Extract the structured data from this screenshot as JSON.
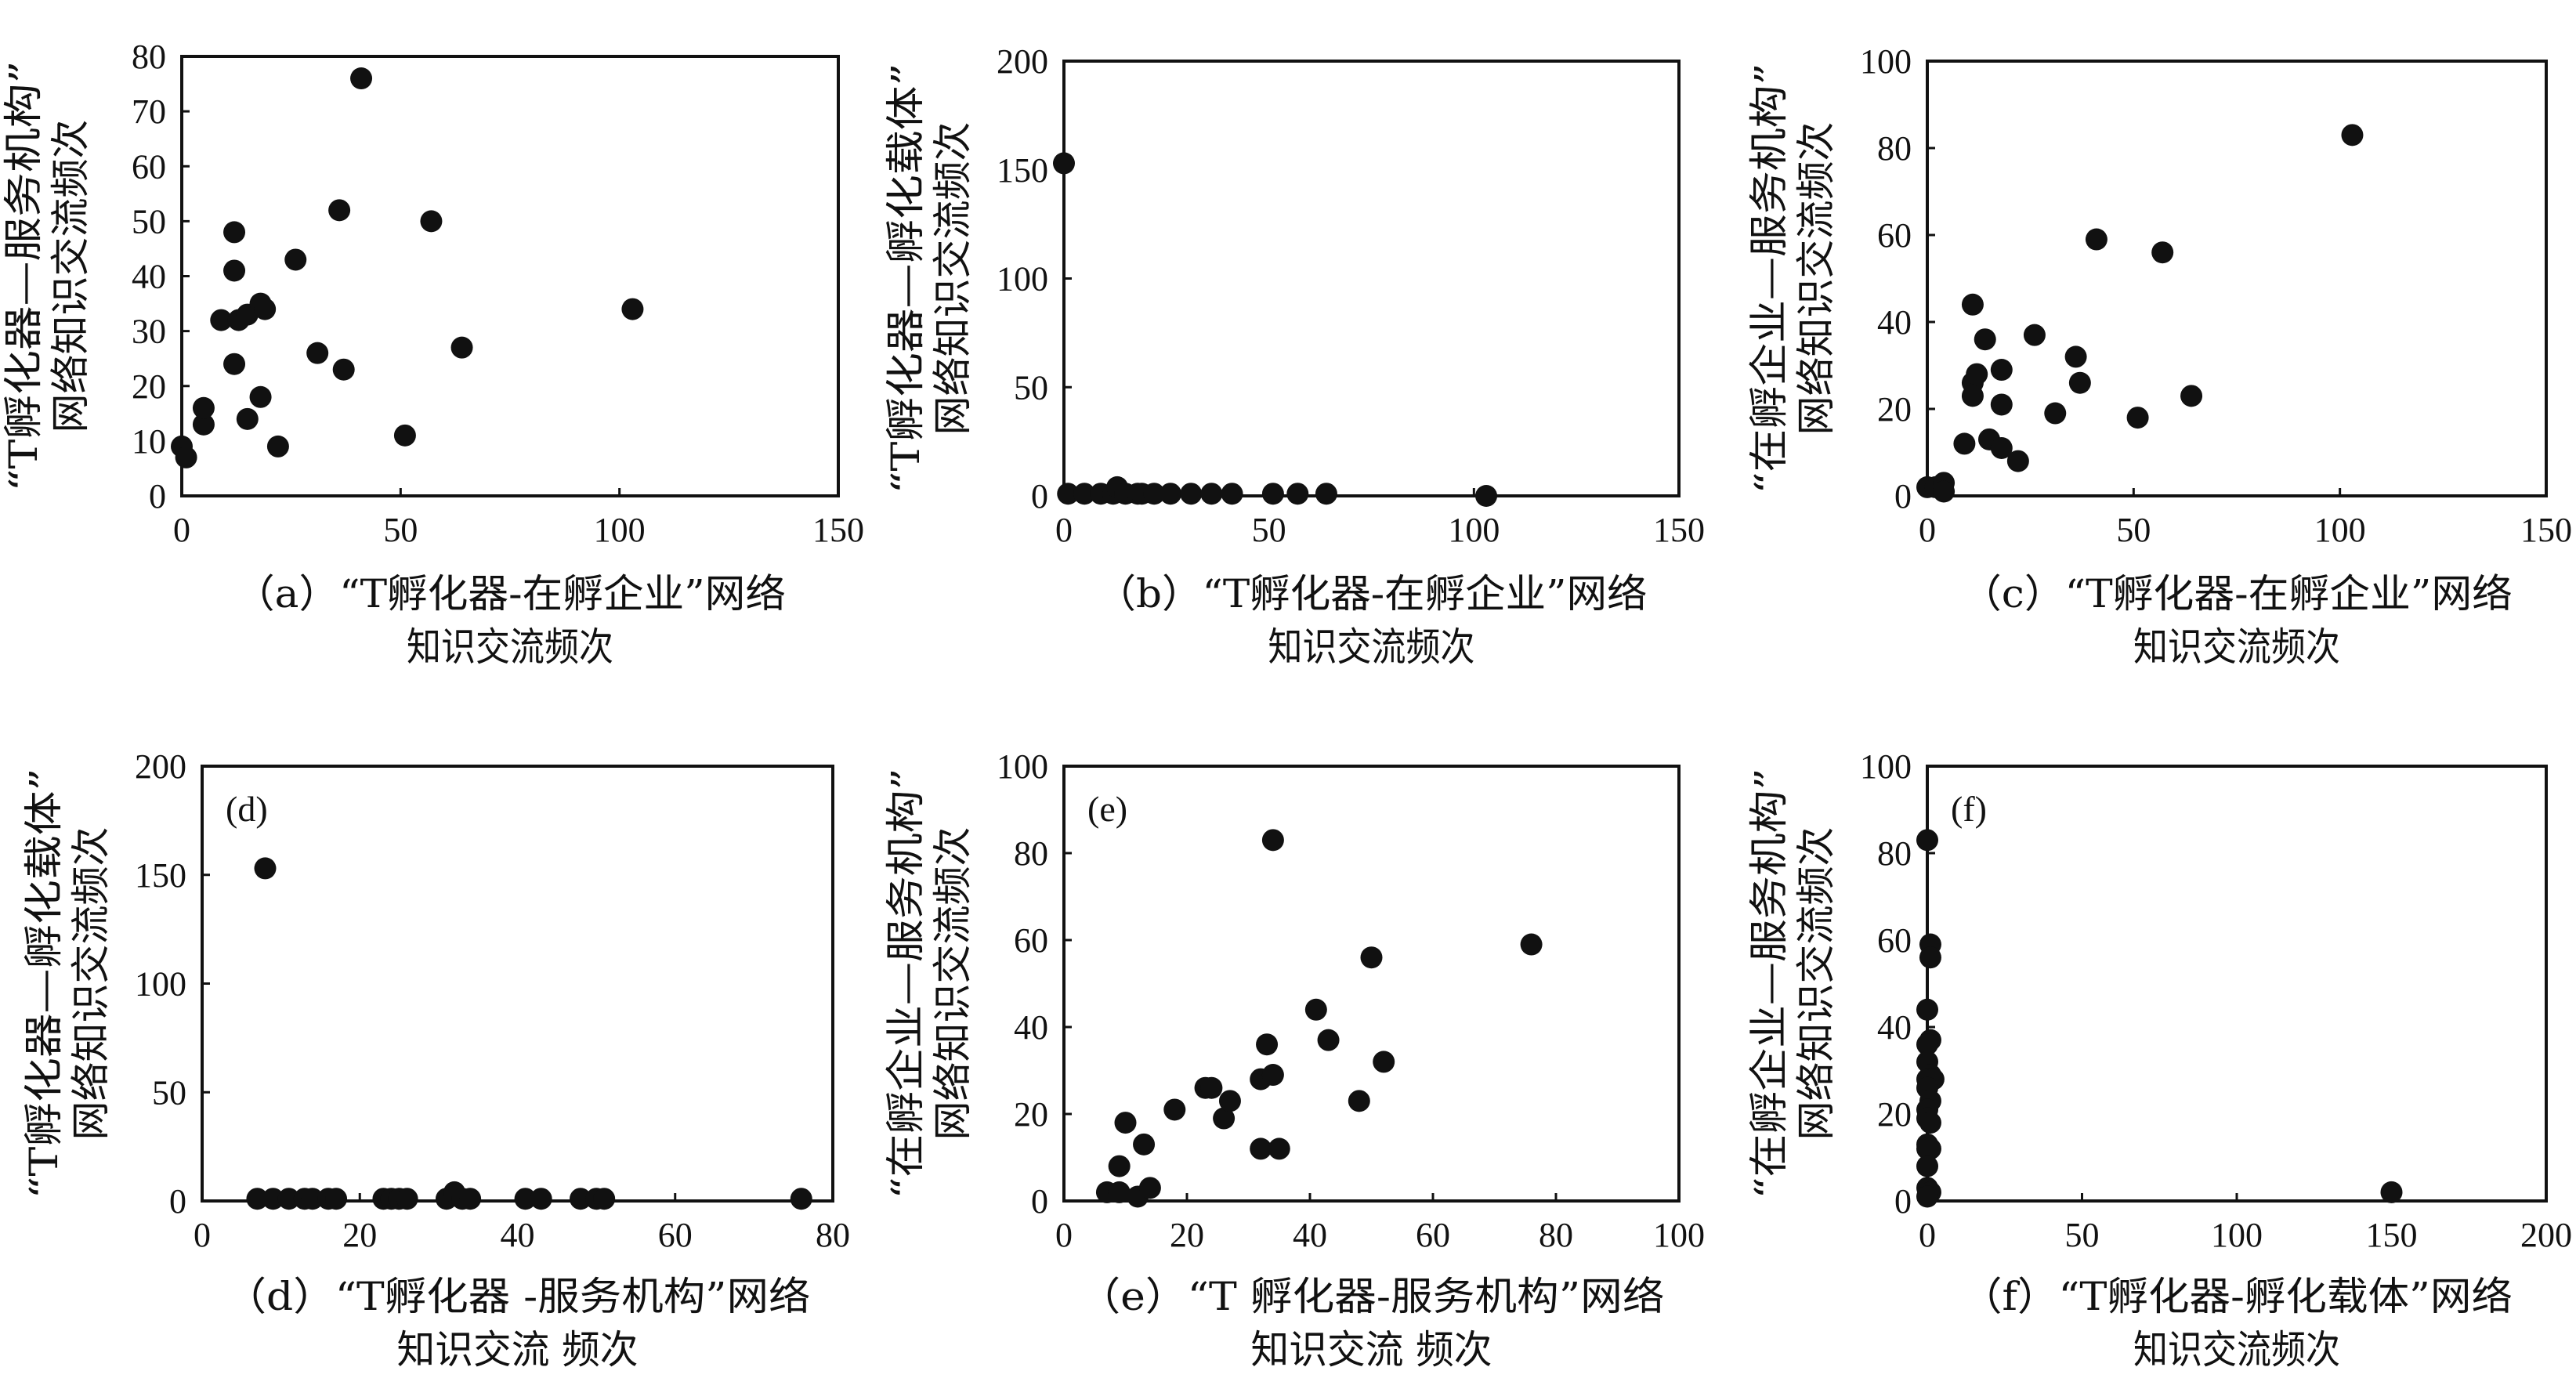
{
  "chart_data": [
    {
      "type": "scatter",
      "panel": "a",
      "tag": "",
      "xlabel": [
        "（a）“T孵化器-在孵企业”网络",
        "知识交流频次"
      ],
      "ylabel": [
        "“T孵化器—服务机构”",
        "网络知识交流频次"
      ],
      "xlim": [
        0,
        150
      ],
      "ylim": [
        0,
        80
      ],
      "xticks": [
        0,
        50,
        100,
        150
      ],
      "yticks": [
        0,
        10,
        20,
        30,
        40,
        50,
        60,
        70,
        80
      ],
      "points": [
        [
          0,
          9
        ],
        [
          1,
          7
        ],
        [
          5,
          13
        ],
        [
          5,
          16
        ],
        [
          9,
          32
        ],
        [
          12,
          48
        ],
        [
          12,
          41
        ],
        [
          12,
          24
        ],
        [
          13,
          32
        ],
        [
          15,
          33
        ],
        [
          15,
          14
        ],
        [
          18,
          35
        ],
        [
          18,
          18
        ],
        [
          19,
          34
        ],
        [
          22,
          9
        ],
        [
          26,
          43
        ],
        [
          31,
          26
        ],
        [
          36,
          52
        ],
        [
          37,
          23
        ],
        [
          41,
          76
        ],
        [
          51,
          11
        ],
        [
          57,
          50
        ],
        [
          64,
          27
        ],
        [
          103,
          34
        ]
      ]
    },
    {
      "type": "scatter",
      "panel": "b",
      "tag": "",
      "xlabel": [
        "（b）“T孵化器-在孵企业”网络",
        "知识交流频次"
      ],
      "ylabel": [
        "“T孵化器—孵化载体”",
        "网络知识交流频次"
      ],
      "xlim": [
        0,
        150
      ],
      "ylim": [
        0,
        200
      ],
      "xticks": [
        0,
        50,
        100,
        150
      ],
      "yticks": [
        0,
        50,
        100,
        150,
        200
      ],
      "points": [
        [
          0,
          153
        ],
        [
          1,
          1
        ],
        [
          5,
          1
        ],
        [
          9,
          1
        ],
        [
          12,
          1
        ],
        [
          13,
          4
        ],
        [
          15,
          1
        ],
        [
          18,
          1
        ],
        [
          19,
          1
        ],
        [
          22,
          1
        ],
        [
          26,
          1
        ],
        [
          31,
          1
        ],
        [
          36,
          1
        ],
        [
          41,
          1
        ],
        [
          51,
          1
        ],
        [
          57,
          1
        ],
        [
          64,
          1
        ],
        [
          103,
          0
        ]
      ]
    },
    {
      "type": "scatter",
      "panel": "c",
      "tag": "",
      "xlabel": [
        "（c）“T孵化器-在孵企业”网络",
        "知识交流频次"
      ],
      "ylabel": [
        "“在孵企业—服务机构”",
        "网络知识交流频次"
      ],
      "xlim": [
        0,
        150
      ],
      "ylim": [
        0,
        100
      ],
      "xticks": [
        0,
        50,
        100,
        150
      ],
      "yticks": [
        0,
        20,
        40,
        60,
        80,
        100
      ],
      "points": [
        [
          0,
          2
        ],
        [
          2,
          2
        ],
        [
          4,
          3
        ],
        [
          4,
          1
        ],
        [
          9,
          12
        ],
        [
          11,
          44
        ],
        [
          11,
          26
        ],
        [
          11,
          23
        ],
        [
          12,
          28
        ],
        [
          14,
          36
        ],
        [
          15,
          13
        ],
        [
          18,
          29
        ],
        [
          18,
          21
        ],
        [
          18,
          11
        ],
        [
          22,
          8
        ],
        [
          26,
          37
        ],
        [
          31,
          19
        ],
        [
          36,
          32
        ],
        [
          37,
          26
        ],
        [
          41,
          59
        ],
        [
          51,
          18
        ],
        [
          57,
          56
        ],
        [
          64,
          23
        ],
        [
          103,
          83
        ]
      ]
    },
    {
      "type": "scatter",
      "panel": "d",
      "tag": "(d)",
      "xlabel": [
        "（d）“T孵化器 -服务机构”网络",
        "知识交流 频次"
      ],
      "ylabel": [
        "“T孵化器—孵化载体”",
        "网络知识交流频次"
      ],
      "xlim": [
        0,
        80
      ],
      "ylim": [
        0,
        200
      ],
      "xticks": [
        0,
        20,
        40,
        60,
        80
      ],
      "yticks": [
        0,
        50,
        100,
        150,
        200
      ],
      "points": [
        [
          7,
          1
        ],
        [
          8,
          153
        ],
        [
          9,
          1
        ],
        [
          11,
          1
        ],
        [
          13,
          1
        ],
        [
          14,
          1
        ],
        [
          16,
          1
        ],
        [
          17,
          1
        ],
        [
          23,
          1
        ],
        [
          24,
          1
        ],
        [
          25,
          1
        ],
        [
          26,
          1
        ],
        [
          31,
          1
        ],
        [
          32,
          4
        ],
        [
          33,
          1
        ],
        [
          34,
          1
        ],
        [
          41,
          1
        ],
        [
          43,
          1
        ],
        [
          48,
          1
        ],
        [
          50,
          1
        ],
        [
          51,
          1
        ],
        [
          76,
          1
        ]
      ]
    },
    {
      "type": "scatter",
      "panel": "e",
      "tag": "(e)",
      "xlabel": [
        "（e）“T 孵化器-服务机构”网络",
        "知识交流 频次"
      ],
      "ylabel": [
        "“在孵企业—服务机构”",
        "网络知识交流频次"
      ],
      "xlim": [
        0,
        100
      ],
      "ylim": [
        0,
        100
      ],
      "xticks": [
        0,
        20,
        40,
        60,
        80,
        100
      ],
      "yticks": [
        0,
        20,
        40,
        60,
        80,
        100
      ],
      "points": [
        [
          7,
          2
        ],
        [
          9,
          2
        ],
        [
          9,
          8
        ],
        [
          10,
          18
        ],
        [
          12,
          1
        ],
        [
          13,
          13
        ],
        [
          14,
          3
        ],
        [
          18,
          21
        ],
        [
          23,
          26
        ],
        [
          24,
          26
        ],
        [
          26,
          19
        ],
        [
          27,
          23
        ],
        [
          32,
          12
        ],
        [
          32,
          28
        ],
        [
          33,
          36
        ],
        [
          34,
          29
        ],
        [
          35,
          12
        ],
        [
          34,
          83
        ],
        [
          41,
          44
        ],
        [
          43,
          37
        ],
        [
          48,
          23
        ],
        [
          50,
          56
        ],
        [
          52,
          32
        ],
        [
          76,
          59
        ]
      ]
    },
    {
      "type": "scatter",
      "panel": "f",
      "tag": "(f)",
      "xlabel": [
        "（f）“T孵化器-孵化载体”网络",
        "知识交流频次"
      ],
      "ylabel": [
        "“在孵企业—服务机构”",
        "网络知识交流频次"
      ],
      "xlim": [
        0,
        200
      ],
      "ylim": [
        0,
        100
      ],
      "xticks": [
        0,
        50,
        100,
        150,
        200
      ],
      "yticks": [
        0,
        20,
        40,
        60,
        80,
        100
      ],
      "points": [
        [
          0,
          83
        ],
        [
          1,
          59
        ],
        [
          1,
          56
        ],
        [
          0,
          44
        ],
        [
          1,
          37
        ],
        [
          0,
          36
        ],
        [
          0,
          32
        ],
        [
          1,
          29
        ],
        [
          0,
          28
        ],
        [
          2,
          28
        ],
        [
          0,
          26
        ],
        [
          1,
          23
        ],
        [
          0,
          21
        ],
        [
          0,
          19
        ],
        [
          1,
          18
        ],
        [
          0,
          13
        ],
        [
          0,
          12
        ],
        [
          1,
          12
        ],
        [
          0,
          8
        ],
        [
          0,
          3
        ],
        [
          1,
          2
        ],
        [
          0,
          1
        ],
        [
          150,
          2
        ]
      ]
    }
  ]
}
